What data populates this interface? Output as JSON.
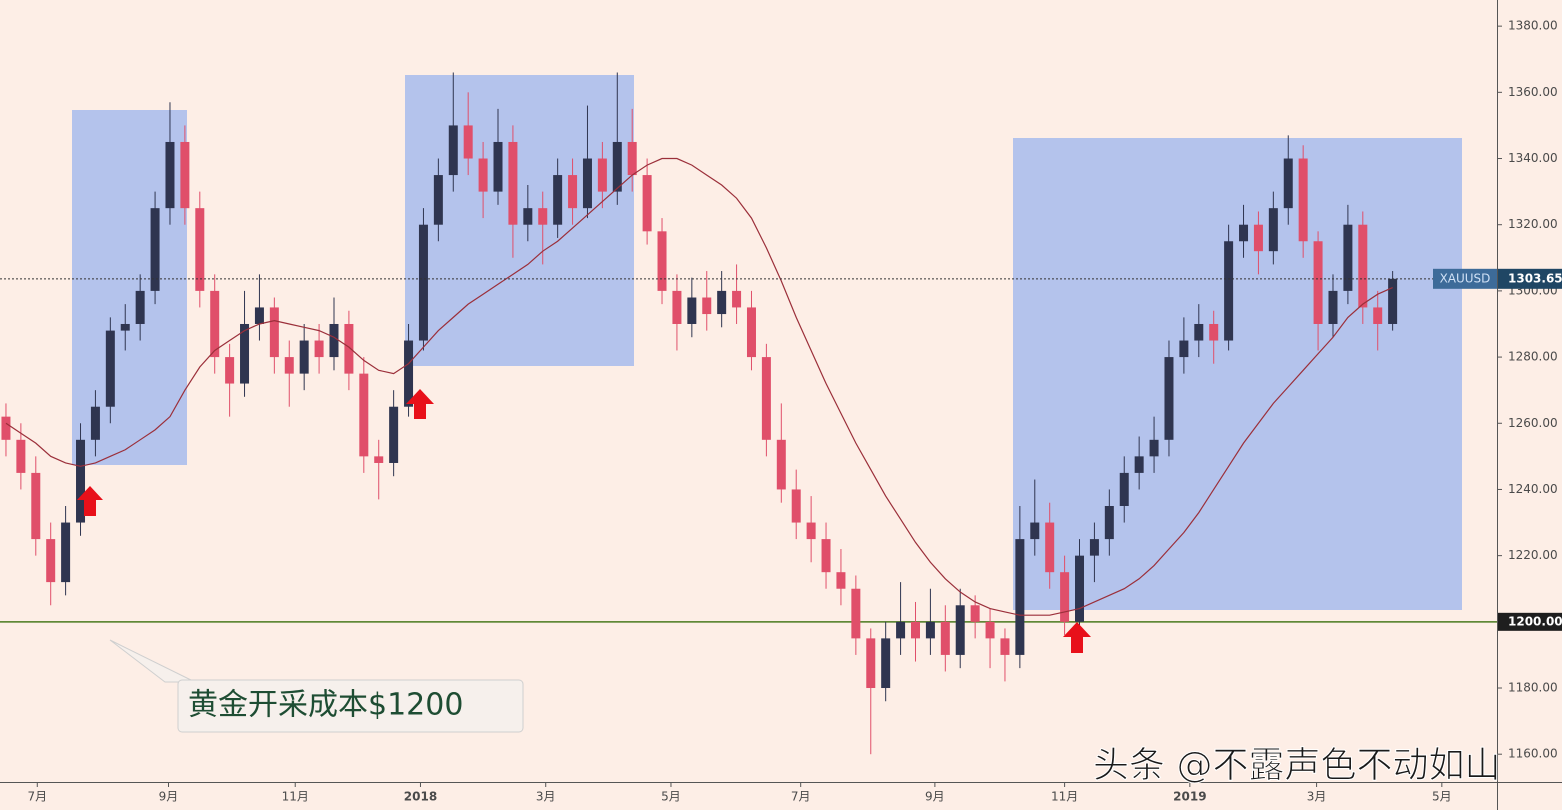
{
  "chart_data": {
    "type": "candlestick",
    "symbol": "XAUUSD",
    "candles": [
      [
        1262,
        1266,
        1250,
        1255
      ],
      [
        1255,
        1260,
        1240,
        1245
      ],
      [
        1245,
        1250,
        1220,
        1225
      ],
      [
        1225,
        1230,
        1205,
        1212
      ],
      [
        1212,
        1235,
        1208,
        1230
      ],
      [
        1230,
        1260,
        1226,
        1255
      ],
      [
        1255,
        1270,
        1250,
        1265
      ],
      [
        1265,
        1292,
        1260,
        1288
      ],
      [
        1288,
        1296,
        1282,
        1290
      ],
      [
        1290,
        1305,
        1285,
        1300
      ],
      [
        1300,
        1330,
        1296,
        1325
      ],
      [
        1325,
        1357,
        1320,
        1345
      ],
      [
        1345,
        1350,
        1320,
        1325
      ],
      [
        1325,
        1330,
        1295,
        1300
      ],
      [
        1300,
        1305,
        1275,
        1280
      ],
      [
        1280,
        1284,
        1262,
        1272
      ],
      [
        1272,
        1300,
        1268,
        1290
      ],
      [
        1290,
        1305,
        1285,
        1295
      ],
      [
        1295,
        1298,
        1275,
        1280
      ],
      [
        1280,
        1285,
        1265,
        1275
      ],
      [
        1275,
        1290,
        1270,
        1285
      ],
      [
        1285,
        1290,
        1275,
        1280
      ],
      [
        1280,
        1298,
        1276,
        1290
      ],
      [
        1290,
        1294,
        1270,
        1275
      ],
      [
        1275,
        1280,
        1245,
        1250
      ],
      [
        1250,
        1255,
        1237,
        1248
      ],
      [
        1248,
        1270,
        1244,
        1265
      ],
      [
        1265,
        1290,
        1262,
        1285
      ],
      [
        1285,
        1325,
        1282,
        1320
      ],
      [
        1320,
        1340,
        1315,
        1335
      ],
      [
        1335,
        1366,
        1330,
        1350
      ],
      [
        1350,
        1360,
        1335,
        1340
      ],
      [
        1340,
        1345,
        1322,
        1330
      ],
      [
        1330,
        1355,
        1326,
        1345
      ],
      [
        1345,
        1350,
        1310,
        1320
      ],
      [
        1320,
        1332,
        1315,
        1325
      ],
      [
        1325,
        1330,
        1308,
        1320
      ],
      [
        1320,
        1340,
        1316,
        1335
      ],
      [
        1335,
        1340,
        1320,
        1325
      ],
      [
        1325,
        1356,
        1322,
        1340
      ],
      [
        1340,
        1345,
        1325,
        1330
      ],
      [
        1330,
        1366,
        1326,
        1345
      ],
      [
        1345,
        1355,
        1330,
        1335
      ],
      [
        1335,
        1340,
        1314,
        1318
      ],
      [
        1318,
        1322,
        1296,
        1300
      ],
      [
        1300,
        1305,
        1282,
        1290
      ],
      [
        1290,
        1304,
        1286,
        1298
      ],
      [
        1298,
        1306,
        1288,
        1293
      ],
      [
        1293,
        1306,
        1289,
        1300
      ],
      [
        1300,
        1308,
        1290,
        1295
      ],
      [
        1295,
        1300,
        1276,
        1280
      ],
      [
        1280,
        1284,
        1250,
        1255
      ],
      [
        1255,
        1266,
        1236,
        1240
      ],
      [
        1240,
        1246,
        1225,
        1230
      ],
      [
        1230,
        1238,
        1218,
        1225
      ],
      [
        1225,
        1230,
        1210,
        1215
      ],
      [
        1215,
        1222,
        1205,
        1210
      ],
      [
        1210,
        1214,
        1190,
        1195
      ],
      [
        1195,
        1198,
        1160,
        1180
      ],
      [
        1180,
        1200,
        1176,
        1195
      ],
      [
        1195,
        1212,
        1190,
        1200
      ],
      [
        1200,
        1206,
        1188,
        1195
      ],
      [
        1195,
        1210,
        1190,
        1200
      ],
      [
        1200,
        1205,
        1185,
        1190
      ],
      [
        1190,
        1210,
        1186,
        1205
      ],
      [
        1205,
        1208,
        1195,
        1200
      ],
      [
        1200,
        1204,
        1186,
        1195
      ],
      [
        1195,
        1198,
        1182,
        1190
      ],
      [
        1190,
        1235,
        1186,
        1225
      ],
      [
        1225,
        1243,
        1220,
        1230
      ],
      [
        1230,
        1236,
        1210,
        1215
      ],
      [
        1215,
        1220,
        1196,
        1200
      ],
      [
        1200,
        1225,
        1198,
        1220
      ],
      [
        1220,
        1230,
        1212,
        1225
      ],
      [
        1225,
        1240,
        1220,
        1235
      ],
      [
        1235,
        1250,
        1230,
        1245
      ],
      [
        1245,
        1256,
        1240,
        1250
      ],
      [
        1250,
        1262,
        1245,
        1255
      ],
      [
        1255,
        1285,
        1250,
        1280
      ],
      [
        1280,
        1292,
        1275,
        1285
      ],
      [
        1285,
        1296,
        1280,
        1290
      ],
      [
        1290,
        1294,
        1278,
        1285
      ],
      [
        1285,
        1320,
        1282,
        1315
      ],
      [
        1315,
        1326,
        1310,
        1320
      ],
      [
        1320,
        1324,
        1305,
        1312
      ],
      [
        1312,
        1330,
        1308,
        1325
      ],
      [
        1325,
        1347,
        1320,
        1340
      ],
      [
        1340,
        1344,
        1310,
        1315
      ],
      [
        1315,
        1318,
        1282,
        1290
      ],
      [
        1290,
        1305,
        1286,
        1300
      ],
      [
        1300,
        1326,
        1296,
        1320
      ],
      [
        1320,
        1324,
        1290,
        1295
      ],
      [
        1295,
        1300,
        1282,
        1290
      ],
      [
        1290,
        1306,
        1288,
        1303.65
      ]
    ],
    "ma": {
      "color": "#9b2f3a",
      "values": [
        1260,
        1257,
        1254,
        1250,
        1248,
        1247,
        1248,
        1250,
        1252,
        1255,
        1258,
        1262,
        1270,
        1277,
        1282,
        1285,
        1288,
        1290,
        1291,
        1290,
        1289,
        1288,
        1286,
        1283,
        1279,
        1276,
        1275,
        1278,
        1283,
        1288,
        1292,
        1296,
        1299,
        1302,
        1305,
        1308,
        1312,
        1315,
        1319,
        1323,
        1327,
        1331,
        1335,
        1338,
        1340,
        1340,
        1338,
        1335,
        1332,
        1328,
        1322,
        1313,
        1303,
        1292,
        1282,
        1272,
        1263,
        1254,
        1246,
        1238,
        1231,
        1224,
        1218,
        1213,
        1209,
        1206,
        1204,
        1203,
        1202,
        1202,
        1202,
        1203,
        1204,
        1206,
        1208,
        1210,
        1213,
        1217,
        1222,
        1227,
        1233,
        1240,
        1247,
        1254,
        1260,
        1266,
        1271,
        1276,
        1281,
        1286,
        1292,
        1296,
        1299,
        1301
      ]
    },
    "colors": {
      "up": "#2f3550",
      "down": "#e04f6a"
    },
    "xlim": [
      -0.4,
      100
    ],
    "xticks": [
      {
        "value": 2.1,
        "label": "7月"
      },
      {
        "value": 10.9,
        "label": "9月"
      },
      {
        "value": 19.4,
        "label": "11月"
      },
      {
        "value": 27.8,
        "label": "2018"
      },
      {
        "value": 36.2,
        "label": "3月"
      },
      {
        "value": 44.6,
        "label": "5月"
      },
      {
        "value": 53.3,
        "label": "7月"
      },
      {
        "value": 62.3,
        "label": "9月"
      },
      {
        "value": 71,
        "label": "11月"
      },
      {
        "value": 79.4,
        "label": "2019"
      },
      {
        "value": 87.9,
        "label": "3月"
      },
      {
        "value": 96.3,
        "label": "5月"
      }
    ],
    "ylim": [
      1151.6,
      1387.9
    ],
    "yticks": [
      {
        "value": 1160,
        "label": "1160.00"
      },
      {
        "value": 1180,
        "label": "1180.00"
      },
      {
        "value": 1200,
        "label": "1200.00"
      },
      {
        "value": 1220,
        "label": "1220.00"
      },
      {
        "value": 1240,
        "label": "1240.00"
      },
      {
        "value": 1260,
        "label": "1260.00"
      },
      {
        "value": 1280,
        "label": "1280.00"
      },
      {
        "value": 1300,
        "label": "1300.00"
      },
      {
        "value": 1320,
        "label": "1320.00"
      },
      {
        "value": 1340,
        "label": "1340.00"
      },
      {
        "value": 1360,
        "label": "1360.00"
      },
      {
        "value": 1380,
        "label": "1380.00"
      }
    ],
    "hline": {
      "value": 1200,
      "label": "1200.00",
      "color": "#4a7a1e"
    }
  },
  "annotation": "黄金开采成本$1200",
  "watermark": "头条 @不露声色不动如山"
}
